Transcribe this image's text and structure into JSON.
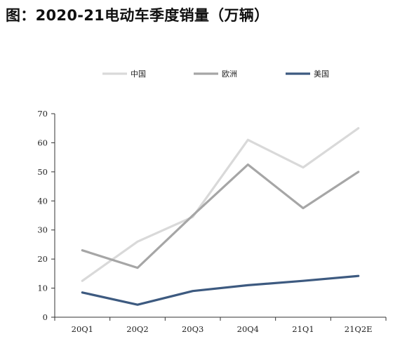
{
  "title": "图：2020-21电动车季度销量（万辆）",
  "chart_data": {
    "type": "line",
    "title": "图：2020-21电动车季度销量（万辆）",
    "categories": [
      "20Q1",
      "20Q2",
      "20Q3",
      "20Q4",
      "21Q1",
      "21Q2E"
    ],
    "ylim": [
      0,
      70
    ],
    "yticks": [
      0,
      10,
      20,
      30,
      40,
      50,
      60,
      70
    ],
    "grid": false,
    "legend": "top",
    "series": [
      {
        "name": "中国",
        "color": "#d9d9d9",
        "values": [
          12.5,
          26,
          34.5,
          61,
          51.5,
          65
        ]
      },
      {
        "name": "欧洲",
        "color": "#a6a6a6",
        "values": [
          23,
          17,
          35,
          52.5,
          37.5,
          50
        ]
      },
      {
        "name": "美国",
        "color": "#3d5a80",
        "values": [
          8.5,
          4.3,
          9,
          11,
          12.5,
          14.2
        ]
      }
    ]
  }
}
